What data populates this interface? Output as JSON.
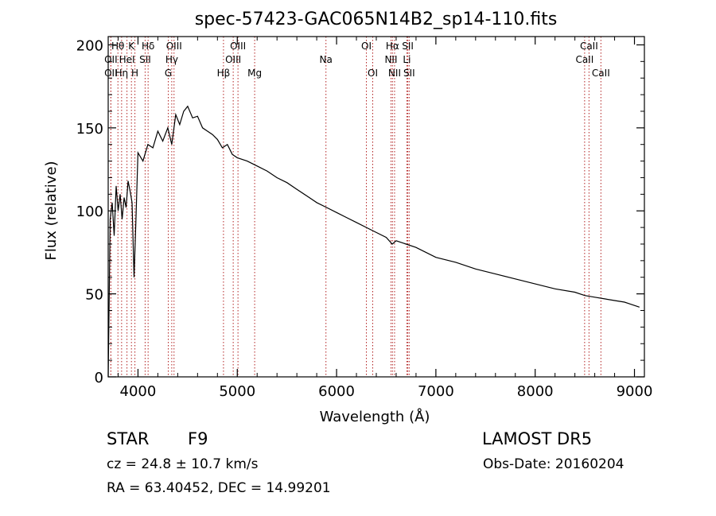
{
  "chart_data": {
    "type": "line",
    "title": "spec-57423-GAC065N14B2_sp14-110.fits",
    "xlabel": "Wavelength (Å)",
    "ylabel": "Flux (relative)",
    "xlim": [
      3700,
      9100
    ],
    "ylim": [
      0,
      205
    ],
    "x_ticks": [
      4000,
      5000,
      6000,
      7000,
      8000,
      9000
    ],
    "y_ticks": [
      0,
      50,
      100,
      150,
      200
    ],
    "grid": false,
    "series": [
      {
        "x": [
          3700,
          3720,
          3740,
          3760,
          3780,
          3800,
          3820,
          3840,
          3860,
          3880,
          3900,
          3920,
          3940,
          3960,
          3980,
          4000,
          4050,
          4100,
          4150,
          4200,
          4250,
          4300,
          4340,
          4380,
          4420,
          4460,
          4500,
          4550,
          4600,
          4650,
          4700,
          4750,
          4800,
          4850,
          4900,
          4950,
          5000,
          5100,
          5200,
          5300,
          5400,
          5500,
          5600,
          5700,
          5800,
          5900,
          6000,
          6100,
          6200,
          6300,
          6400,
          6500,
          6560,
          6600,
          6700,
          6800,
          6900,
          7000,
          7200,
          7400,
          7600,
          7800,
          8000,
          8200,
          8400,
          8500,
          8600,
          8700,
          8800,
          8900,
          9000,
          9050
        ],
        "y": [
          0,
          95,
          105,
          85,
          115,
          100,
          110,
          95,
          108,
          102,
          118,
          112,
          105,
          60,
          95,
          135,
          130,
          140,
          138,
          148,
          142,
          150,
          140,
          158,
          152,
          160,
          163,
          156,
          157,
          150,
          148,
          146,
          143,
          138,
          140,
          134,
          132,
          130,
          127,
          124,
          120,
          117,
          113,
          109,
          105,
          102,
          99,
          96,
          93,
          90,
          87,
          84,
          80,
          82,
          80,
          78,
          75,
          72,
          69,
          65,
          62,
          59,
          56,
          53,
          51,
          49,
          48,
          47,
          46,
          45,
          43,
          42
        ]
      }
    ],
    "line_markers": [
      {
        "label": "Hθ",
        "x": 3798,
        "row": 0
      },
      {
        "label": "OII",
        "x": 3727,
        "row": 1
      },
      {
        "label": "OII",
        "x": 3727,
        "row": 2
      },
      {
        "label": "Hη",
        "x": 3835,
        "row": 2
      },
      {
        "label": "K",
        "x": 3934,
        "row": 0
      },
      {
        "label": "HeI",
        "x": 3889,
        "row": 1
      },
      {
        "label": "H",
        "x": 3969,
        "row": 2
      },
      {
        "label": "Hδ",
        "x": 4102,
        "row": 0
      },
      {
        "label": "SII",
        "x": 4072,
        "row": 1
      },
      {
        "label": "OIII",
        "x": 4363,
        "row": 0
      },
      {
        "label": "Hγ",
        "x": 4340,
        "row": 1
      },
      {
        "label": "G",
        "x": 4305,
        "row": 2
      },
      {
        "label": "Hβ",
        "x": 4861,
        "row": 2
      },
      {
        "label": "OIII",
        "x": 5007,
        "row": 0
      },
      {
        "label": "OIII",
        "x": 4959,
        "row": 1
      },
      {
        "label": "Mg",
        "x": 5175,
        "row": 2
      },
      {
        "label": "Na",
        "x": 5893,
        "row": 1
      },
      {
        "label": "OI",
        "x": 6300,
        "row": 0
      },
      {
        "label": "OI",
        "x": 6364,
        "row": 2
      },
      {
        "label": "Hα",
        "x": 6563,
        "row": 0
      },
      {
        "label": "NII",
        "x": 6548,
        "row": 1
      },
      {
        "label": "NII",
        "x": 6584,
        "row": 2
      },
      {
        "label": "SII",
        "x": 6717,
        "row": 0
      },
      {
        "label": "Li",
        "x": 6708,
        "row": 1
      },
      {
        "label": "SII",
        "x": 6731,
        "row": 2
      },
      {
        "label": "CaII",
        "x": 8542,
        "row": 0
      },
      {
        "label": "CaII",
        "x": 8498,
        "row": 1
      },
      {
        "label": "CaII",
        "x": 8662,
        "row": 2
      }
    ]
  },
  "info": {
    "object_class": "STAR",
    "subclass": "F9",
    "survey": "LAMOST DR5",
    "cz": "cz = 24.8 ± 10.7 km/s",
    "obs_date": "Obs-Date: 20160204",
    "coords": "RA =  63.40452, DEC =  14.99201"
  },
  "colors": {
    "line": "#000000",
    "markers": "#b22222"
  }
}
